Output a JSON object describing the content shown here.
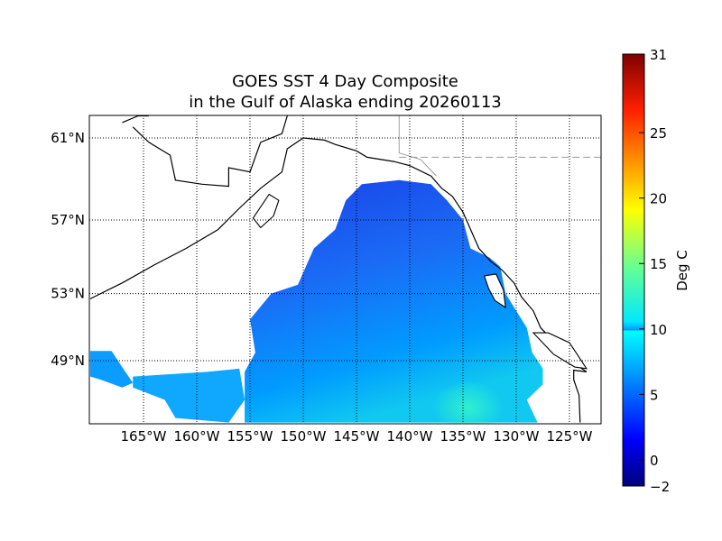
{
  "chart_data": {
    "type": "heatmap",
    "title_line1": "GOES SST 4 Day Composite",
    "title_line2": "in the Gulf of Alaska ending 20260113",
    "projection": "mercator",
    "lon_range": [
      -170,
      -122
    ],
    "lat_range": [
      45,
      62
    ],
    "grid": "dotted",
    "lat_ticks": [
      {
        "value": 61,
        "label": "61°N"
      },
      {
        "value": 57,
        "label": "57°N"
      },
      {
        "value": 53,
        "label": "53°N"
      },
      {
        "value": 49,
        "label": "49°N"
      }
    ],
    "lon_ticks": [
      {
        "value": -165,
        "label": "165°W"
      },
      {
        "value": -160,
        "label": "160°W"
      },
      {
        "value": -155,
        "label": "155°W"
      },
      {
        "value": -150,
        "label": "150°W"
      },
      {
        "value": -145,
        "label": "145°W"
      },
      {
        "value": -140,
        "label": "140°W"
      },
      {
        "value": -135,
        "label": "135°W"
      },
      {
        "value": -130,
        "label": "130°W"
      },
      {
        "value": -125,
        "label": "125°W"
      }
    ],
    "colorbar": {
      "label": "Deg C",
      "colormap": "jet",
      "range": [
        -2,
        31
      ],
      "ticks": [
        {
          "value": 31,
          "label": "31"
        },
        {
          "value": 25,
          "label": "25"
        },
        {
          "value": 20,
          "label": "20"
        },
        {
          "value": 15,
          "label": "15"
        },
        {
          "value": 10,
          "label": "10"
        },
        {
          "value": 5,
          "label": "5"
        },
        {
          "value": 0,
          "label": "0"
        },
        {
          "value": -2,
          "label": "−2"
        }
      ]
    },
    "sst_range_observed": [
      3,
      11
    ],
    "colors": {
      "cold_north": "#1a4cf0",
      "mid": "#0096ff",
      "warm_southeast": "#2af0d8",
      "land": "#ffffff",
      "coast": "#000000"
    }
  }
}
